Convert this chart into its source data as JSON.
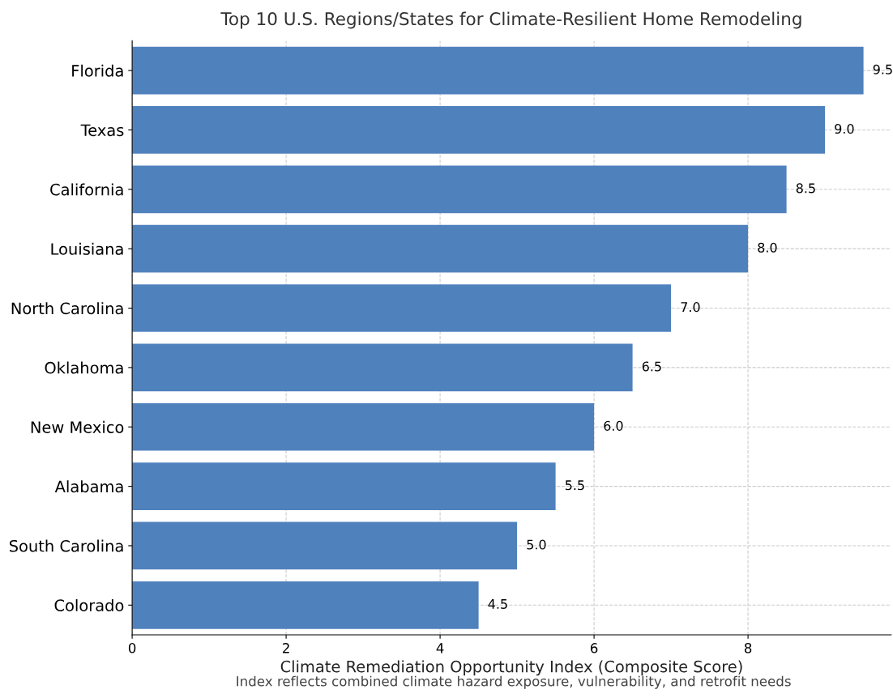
{
  "chart_data": {
    "type": "bar",
    "orientation": "horizontal",
    "title": "Top 10 U.S. Regions/States for Climate-Resilient Home Remodeling",
    "xlabel": "Climate Remediation Opportunity Index (Composite Score)",
    "annotations": [
      "Index reflects combined climate hazard exposure, vulnerability, and retrofit needs"
    ],
    "categories": [
      "Florida",
      "Texas",
      "California",
      "Louisiana",
      "North Carolina",
      "Oklahoma",
      "New Mexico",
      "Alabama",
      "South Carolina",
      "Colorado"
    ],
    "values": [
      9.5,
      9.0,
      8.5,
      8.0,
      7.0,
      6.5,
      6.0,
      5.5,
      5.0,
      4.5
    ],
    "value_labels": [
      "9.5",
      "9.0",
      "8.5",
      "8.0",
      "7.0",
      "6.5",
      "6.0",
      "5.5",
      "5.0",
      "4.5"
    ],
    "color": "#4f81bd",
    "xlim": [
      0,
      9.86
    ],
    "xticks": [
      0,
      2,
      4,
      6,
      8
    ],
    "grid": true
  }
}
